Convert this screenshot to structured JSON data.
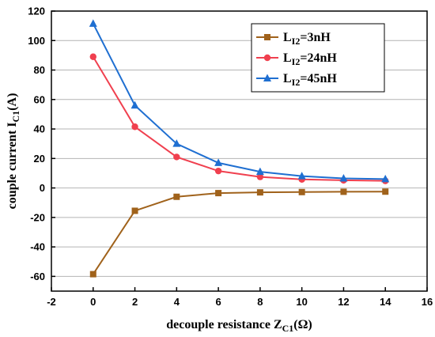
{
  "chart_data": {
    "type": "line",
    "x": [
      0,
      2,
      4,
      6,
      8,
      10,
      12,
      14
    ],
    "series": [
      {
        "name_main": "L",
        "name_sub": "I2",
        "name_rest": "=3nH",
        "color": "#a0621b",
        "marker": "square",
        "values": [
          -58.5,
          -15.5,
          -6,
          -3.5,
          -3,
          -2.8,
          -2.6,
          -2.5
        ]
      },
      {
        "name_main": "L",
        "name_sub": "I2",
        "name_rest": "=24nH",
        "color": "#f0404f",
        "marker": "circle",
        "values": [
          89,
          41.5,
          21,
          11.5,
          7.5,
          5.8,
          5.2,
          4.8
        ]
      },
      {
        "name_main": "L",
        "name_sub": "I2",
        "name_rest": "=45nH",
        "color": "#1f6fd1",
        "marker": "triangle",
        "values": [
          111.5,
          56,
          30,
          17,
          11,
          8,
          6.5,
          6
        ]
      }
    ],
    "xlim": [
      -2,
      16
    ],
    "ylim": [
      -70,
      120
    ],
    "xticks": [
      -2,
      0,
      2,
      4,
      6,
      8,
      10,
      12,
      14,
      16
    ],
    "yticks": [
      -60,
      -40,
      -20,
      0,
      20,
      40,
      60,
      80,
      100,
      120
    ],
    "xlabel": {
      "main": "decouple resistance Z",
      "sub": "C1",
      "rest": "(Ω)"
    },
    "ylabel": {
      "main": "couple current I",
      "sub": "C1",
      "rest": "(A)"
    },
    "grid": true,
    "legend_position": "top-right"
  }
}
